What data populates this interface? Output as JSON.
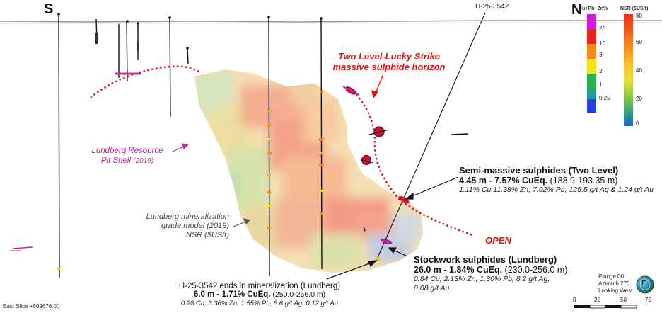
{
  "directions": {
    "south": "S",
    "north": "N"
  },
  "collar_label": "H-25-3542",
  "horizon_label": [
    "Two Level-Lucky Strike",
    "massive sulphide horizon"
  ],
  "pit_shell": {
    "line1": "Lundberg Resource",
    "line2": "Pit Shell",
    "line2_small": "(2019)"
  },
  "grade_model": [
    "Lundberg mineralization",
    "grade model (2019)",
    "NSR ($US/t)"
  ],
  "open_label": "OPEN",
  "semi_massive": {
    "title": "Semi-massive sulphides (Two Level)",
    "bold": "4.45 m - 7.57% CuEq.",
    "range": " (188.9-193.35 m)",
    "detail": "1.11% Cu,11.38% Zn, 7.02% Pb, 125.5 g/t Ag & 1.24 g/t Au"
  },
  "stockwork": {
    "title": "Stockwork sulphides (Lundberg)",
    "bold": "26.0 m - 1.84% CuEq.",
    "range": " (230.0-256.0 m)",
    "detail1": "0.84 Cu, 2.13% Zn, 1.30% Pb, 8.2 g/t Ag,",
    "detail2": "0.08 g/t Au"
  },
  "hole_end": {
    "title": "H-25-3542 ends in mineralization (Lundberg)",
    "bold": "6.0 m - 1.71% CuEq.",
    "range": " (250.0-256.0 m)",
    "detail": "0.28 Cu, 3.36% Zn, 1.55% Pb, 8.6 g/t Ag, 0.12 g/t Au"
  },
  "legend_cppz": {
    "title": "Cu+Pb+Zn%",
    "ticks": [
      "20",
      "10",
      "3",
      "2",
      "1",
      "0.25"
    ],
    "colors": [
      "#cc1ed6",
      "#e8231a",
      "#f58a1c",
      "#f2e21a",
      "#2fb04a",
      "#1e9e8e",
      "#2a3fe0"
    ]
  },
  "legend_nsr": {
    "title": "NSR ($US/t)",
    "ticks": [
      "80",
      "60",
      "40",
      "20",
      "0"
    ],
    "gradient": [
      "#ee2c15",
      "#f77e1f",
      "#fbc028",
      "#e6dc3a",
      "#7fc447",
      "#2fa47a",
      "#1f5fd0"
    ]
  },
  "east_slice": "East Slice +509676.00",
  "view": {
    "plunge": "Plunge 00",
    "azimuth": "Azimuth 270",
    "looking": "Looking West"
  },
  "compass_letter": "E",
  "scale": {
    "ticks": [
      "0",
      "25",
      "50",
      "75"
    ]
  }
}
